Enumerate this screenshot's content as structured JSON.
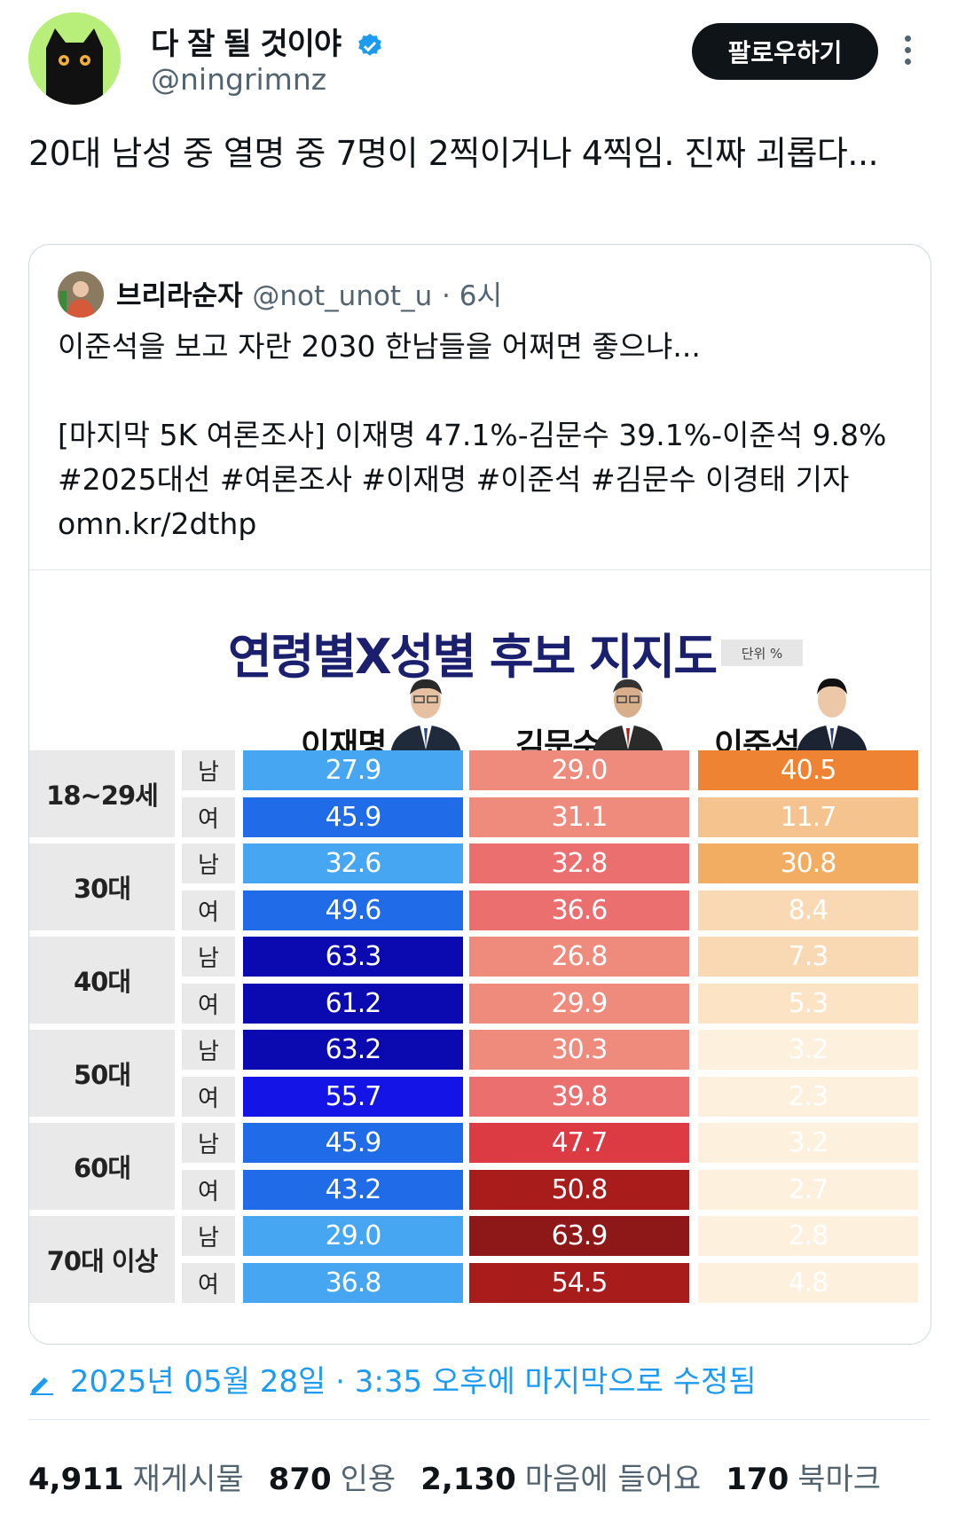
{
  "author": {
    "display_name": "다 잘 될 것이야",
    "handle": "@ningrimnz",
    "follow_label": "팔로우하기"
  },
  "tweet": {
    "text": "20대 남성 중 열명 중 7명이 2찍이거나 4찍임. 진짜 괴롭다..."
  },
  "quote": {
    "name": "브리라순자",
    "handle": "@not_unot_u",
    "time": "· 6시",
    "line1": "이준석을 보고 자란 2030 한남들을 어쩌면 좋으냐...",
    "line2": "[마지막 5K 여론조사] 이재명 47.1%-김문수 39.1%-이준석 9.8%",
    "line3": "#2025대선 #여론조사 #이재명 #이준석 #김문수 이경태 기자",
    "line4": "omn.kr/2dthp"
  },
  "chart": {
    "title": "연령별X성별 후보 지지도",
    "unit": "단위 %",
    "candidates": [
      "이재명",
      "김문수",
      "이준석"
    ],
    "sex_labels": [
      "남",
      "여"
    ],
    "age_groups": [
      "18~29세",
      "30대",
      "40대",
      "50대",
      "60대",
      "70대 이상"
    ],
    "rows": [
      {
        "age": "18~29세",
        "sex": "남",
        "values": [
          "27.9",
          "29.0",
          "40.5"
        ]
      },
      {
        "age": "18~29세",
        "sex": "여",
        "values": [
          "45.9",
          "31.1",
          "11.7"
        ]
      },
      {
        "age": "30대",
        "sex": "남",
        "values": [
          "32.6",
          "32.8",
          "30.8"
        ]
      },
      {
        "age": "30대",
        "sex": "여",
        "values": [
          "49.6",
          "36.6",
          "8.4"
        ]
      },
      {
        "age": "40대",
        "sex": "남",
        "values": [
          "63.3",
          "26.8",
          "7.3"
        ]
      },
      {
        "age": "40대",
        "sex": "여",
        "values": [
          "61.2",
          "29.9",
          "5.3"
        ]
      },
      {
        "age": "50대",
        "sex": "남",
        "values": [
          "63.2",
          "30.3",
          "3.2"
        ]
      },
      {
        "age": "50대",
        "sex": "여",
        "values": [
          "55.7",
          "39.8",
          "2.3"
        ]
      },
      {
        "age": "60대",
        "sex": "남",
        "values": [
          "45.9",
          "47.7",
          "3.2"
        ]
      },
      {
        "age": "60대",
        "sex": "여",
        "values": [
          "43.2",
          "50.8",
          "2.7"
        ]
      },
      {
        "age": "70대 이상",
        "sex": "남",
        "values": [
          "29.0",
          "63.9",
          "2.8"
        ]
      },
      {
        "age": "70대 이상",
        "sex": "여",
        "values": [
          "36.8",
          "54.5",
          "4.8"
        ]
      }
    ]
  },
  "edited_text": "2025년 05월 28일 · 3:35 오후에 마지막으로 수정됨",
  "stats": {
    "reposts_count": "4,911",
    "reposts_label": "재게시물",
    "quotes_count": "870",
    "quotes_label": "인용",
    "likes_count": "2,130",
    "likes_label": "마음에 들어요",
    "bookmarks_count": "170",
    "bookmarks_label": "북마크"
  },
  "colors": {
    "accent": "#1d9bf0",
    "lee_jm_scale": [
      "#42a5f5",
      "#1565e8",
      "#0c11b8",
      "#1d1de8"
    ],
    "kim_ms_scale": [
      "#ef9a8a",
      "#e04b4b",
      "#9c1a1a"
    ],
    "lee_js_scale": [
      "#ef8a3a",
      "#f6c896",
      "#fdf0df"
    ]
  }
}
